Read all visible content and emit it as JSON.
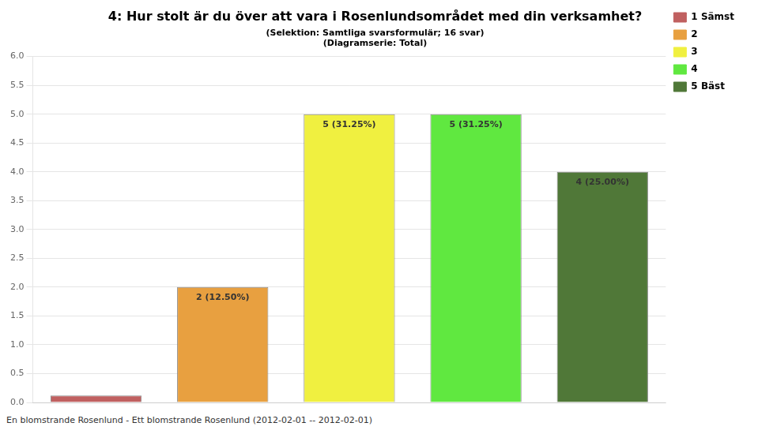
{
  "chart_data": {
    "type": "bar",
    "title": "4: Hur stolt är du över att vara i Rosenlundsområdet med din verksamhet?",
    "subtitle": [
      "(Selektion: Samtliga svarsformulär; 16 svar)",
      "(Diagramserie: Total)"
    ],
    "footer": "En blomstrande Rosenlund - Ett blomstrande Rosenlund (2012-02-01 -- 2012-02-01)",
    "categories": [
      "1 Sämst",
      "2",
      "3",
      "4",
      "5 Bäst"
    ],
    "values": [
      0.12,
      2,
      5,
      5,
      4
    ],
    "value_labels": [
      null,
      "2 (12.50%)",
      "5 (31.25%)",
      "5 (31.25%)",
      "4 (25.00%)"
    ],
    "data_labels": true,
    "colors": [
      "#c06060",
      "#e8a040",
      "#f0f040",
      "#60e840",
      "#507838"
    ],
    "ylim": [
      0,
      6
    ],
    "yticks": [
      {
        "value": 0,
        "label": "0.0"
      },
      0.5,
      {
        "value": 1,
        "label": "1.0"
      },
      1.5,
      {
        "value": 2,
        "label": "2.0"
      },
      2.5,
      {
        "value": 3,
        "label": "3.0"
      },
      3.5,
      {
        "value": 4,
        "label": "4.0"
      },
      4.5,
      {
        "value": 5,
        "label": "5.0"
      },
      5.5,
      {
        "value": 6,
        "label": "6.0"
      }
    ],
    "grid": true,
    "legend": "right",
    "tick_labels": "y"
  }
}
